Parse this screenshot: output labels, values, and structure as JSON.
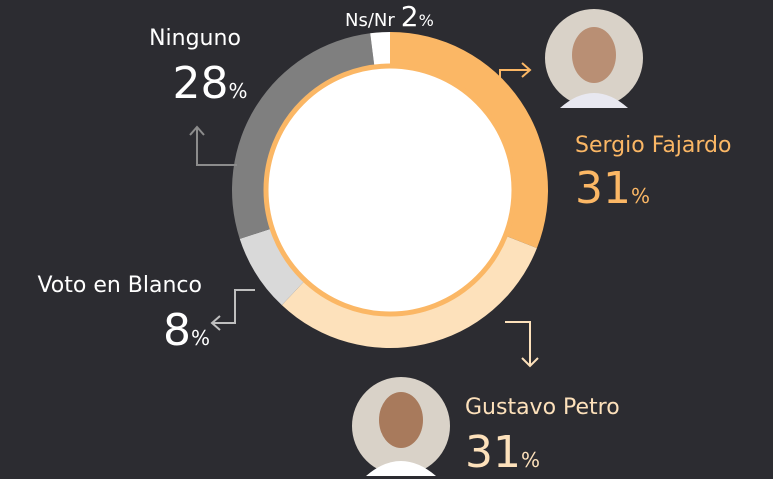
{
  "chart_data": {
    "type": "donut",
    "categories": [
      "Sergio Fajardo",
      "Gustavo Petro",
      "Voto en Blanco",
      "Ninguno",
      "Ns/Nr"
    ],
    "values": [
      31,
      31,
      8,
      28,
      2
    ],
    "unit": "%",
    "colors": [
      "#fbb765",
      "#fde1bb",
      "#d9d9d9",
      "#7f7f7f",
      "#ffffff"
    ]
  }
}
